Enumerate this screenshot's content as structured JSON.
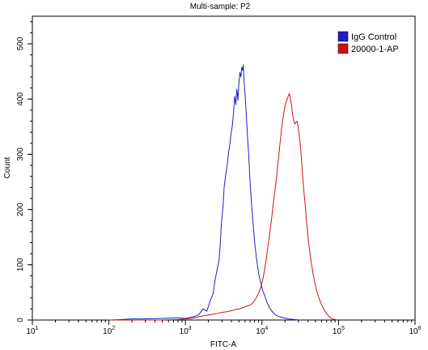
{
  "chart_data": {
    "type": "line",
    "title": "Multi-sample: P2",
    "xlabel": "FITC-A",
    "ylabel": "Count",
    "x_scale": "log",
    "xlim": [
      10,
      1000000
    ],
    "ylim": [
      0,
      550
    ],
    "x_ticks": [
      {
        "value": 10,
        "base": "10",
        "exp": "1"
      },
      {
        "value": 100,
        "base": "10",
        "exp": "2"
      },
      {
        "value": 1000,
        "base": "10",
        "exp": "3"
      },
      {
        "value": 10000,
        "base": "10",
        "exp": "4"
      },
      {
        "value": 100000,
        "base": "10",
        "exp": "5"
      },
      {
        "value": 1000000,
        "base": "10",
        "exp": "6"
      }
    ],
    "y_ticks": [
      0,
      100,
      200,
      300,
      400,
      500
    ],
    "grid": false,
    "legend_position": "top-right",
    "series": [
      {
        "name": "IgG Control",
        "color": "#1f1fc8",
        "points": [
          [
            100,
            0
          ],
          [
            150,
            1
          ],
          [
            200,
            2
          ],
          [
            300,
            2
          ],
          [
            500,
            3
          ],
          [
            800,
            4
          ],
          [
            1000,
            3
          ],
          [
            1300,
            6
          ],
          [
            1500,
            10
          ],
          [
            1700,
            20
          ],
          [
            1900,
            16
          ],
          [
            2100,
            34
          ],
          [
            2300,
            48
          ],
          [
            2450,
            74
          ],
          [
            2600,
            92
          ],
          [
            2750,
            108
          ],
          [
            2850,
            138
          ],
          [
            2950,
            175
          ],
          [
            3100,
            205
          ],
          [
            3200,
            240
          ],
          [
            3350,
            262
          ],
          [
            3500,
            278
          ],
          [
            3650,
            302
          ],
          [
            3800,
            318
          ],
          [
            3950,
            338
          ],
          [
            4100,
            352
          ],
          [
            4250,
            375
          ],
          [
            4400,
            405
          ],
          [
            4550,
            390
          ],
          [
            4700,
            418
          ],
          [
            4850,
            398
          ],
          [
            5000,
            430
          ],
          [
            5150,
            448
          ],
          [
            5300,
            440
          ],
          [
            5450,
            458
          ],
          [
            5600,
            452
          ],
          [
            5700,
            462
          ],
          [
            5850,
            430
          ],
          [
            6000,
            410
          ],
          [
            6200,
            378
          ],
          [
            6450,
            335
          ],
          [
            6700,
            300
          ],
          [
            7000,
            248
          ],
          [
            7300,
            210
          ],
          [
            7700,
            170
          ],
          [
            8100,
            135
          ],
          [
            8600,
            105
          ],
          [
            9100,
            82
          ],
          [
            9700,
            66
          ],
          [
            10300,
            52
          ],
          [
            11000,
            42
          ],
          [
            11800,
            30
          ],
          [
            12600,
            22
          ],
          [
            13500,
            16
          ],
          [
            14500,
            11
          ],
          [
            15500,
            8
          ],
          [
            17000,
            6
          ],
          [
            19000,
            4
          ],
          [
            22000,
            2
          ],
          [
            26000,
            1
          ],
          [
            32000,
            0
          ]
        ]
      },
      {
        "name": "20000-1-AP",
        "color": "#d01010",
        "points": [
          [
            100,
            0
          ],
          [
            500,
            0
          ],
          [
            800,
            1
          ],
          [
            1000,
            2
          ],
          [
            1200,
            3
          ],
          [
            1500,
            6
          ],
          [
            1800,
            8
          ],
          [
            2200,
            10
          ],
          [
            2600,
            12
          ],
          [
            3000,
            14
          ],
          [
            3500,
            15
          ],
          [
            4000,
            17
          ],
          [
            4500,
            19
          ],
          [
            5000,
            20
          ],
          [
            5500,
            22
          ],
          [
            6000,
            24
          ],
          [
            6600,
            26
          ],
          [
            7200,
            28
          ],
          [
            7800,
            33
          ],
          [
            8400,
            40
          ],
          [
            9000,
            48
          ],
          [
            9600,
            58
          ],
          [
            10200,
            72
          ],
          [
            10800,
            90
          ],
          [
            11400,
            112
          ],
          [
            12000,
            135
          ],
          [
            12700,
            160
          ],
          [
            13400,
            185
          ],
          [
            14100,
            212
          ],
          [
            14800,
            235
          ],
          [
            15600,
            262
          ],
          [
            16400,
            292
          ],
          [
            17200,
            320
          ],
          [
            18000,
            345
          ],
          [
            18800,
            365
          ],
          [
            19600,
            380
          ],
          [
            20400,
            392
          ],
          [
            21200,
            398
          ],
          [
            22000,
            405
          ],
          [
            22800,
            410
          ],
          [
            23500,
            402
          ],
          [
            24300,
            390
          ],
          [
            25100,
            372
          ],
          [
            26000,
            360
          ],
          [
            26900,
            355
          ],
          [
            27800,
            358
          ],
          [
            28700,
            360
          ],
          [
            29600,
            350
          ],
          [
            30600,
            335
          ],
          [
            31600,
            318
          ],
          [
            32700,
            295
          ],
          [
            33800,
            265
          ],
          [
            35000,
            238
          ],
          [
            36500,
            212
          ],
          [
            38000,
            182
          ],
          [
            40000,
            150
          ],
          [
            42000,
            125
          ],
          [
            44500,
            100
          ],
          [
            47000,
            80
          ],
          [
            50000,
            62
          ],
          [
            53000,
            48
          ],
          [
            56500,
            37
          ],
          [
            60000,
            28
          ],
          [
            64000,
            20
          ],
          [
            68000,
            14
          ],
          [
            72000,
            9
          ],
          [
            77000,
            5
          ],
          [
            83000,
            2
          ],
          [
            90000,
            1
          ],
          [
            100000,
            0
          ]
        ]
      }
    ]
  }
}
